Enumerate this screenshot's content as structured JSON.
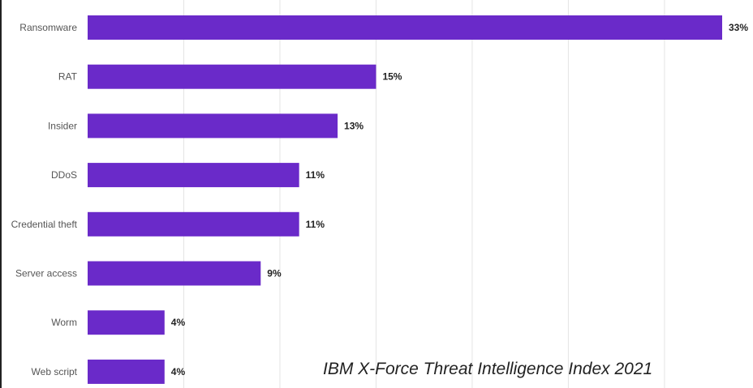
{
  "chart_data": {
    "type": "bar",
    "orientation": "horizontal",
    "categories": [
      "Ransomware",
      "RAT",
      "Insider",
      "DDoS",
      "Credential theft",
      "Server access",
      "Worm",
      "Web script"
    ],
    "values": [
      33,
      15,
      13,
      11,
      11,
      9,
      4,
      4
    ],
    "value_labels": [
      "33%",
      "15%",
      "13%",
      "11%",
      "11%",
      "9%",
      "4%",
      "4%"
    ],
    "title": "",
    "xlabel": "",
    "ylabel": "",
    "xlim": [
      0,
      33
    ],
    "grid": true,
    "legend": "none",
    "bar_color": "#6a2ac9",
    "grid_color": "#e4e4e4",
    "label_color": "#555555",
    "value_label_color": "#222222"
  },
  "caption": "IBM X-Force Threat Intelligence Index 2021"
}
